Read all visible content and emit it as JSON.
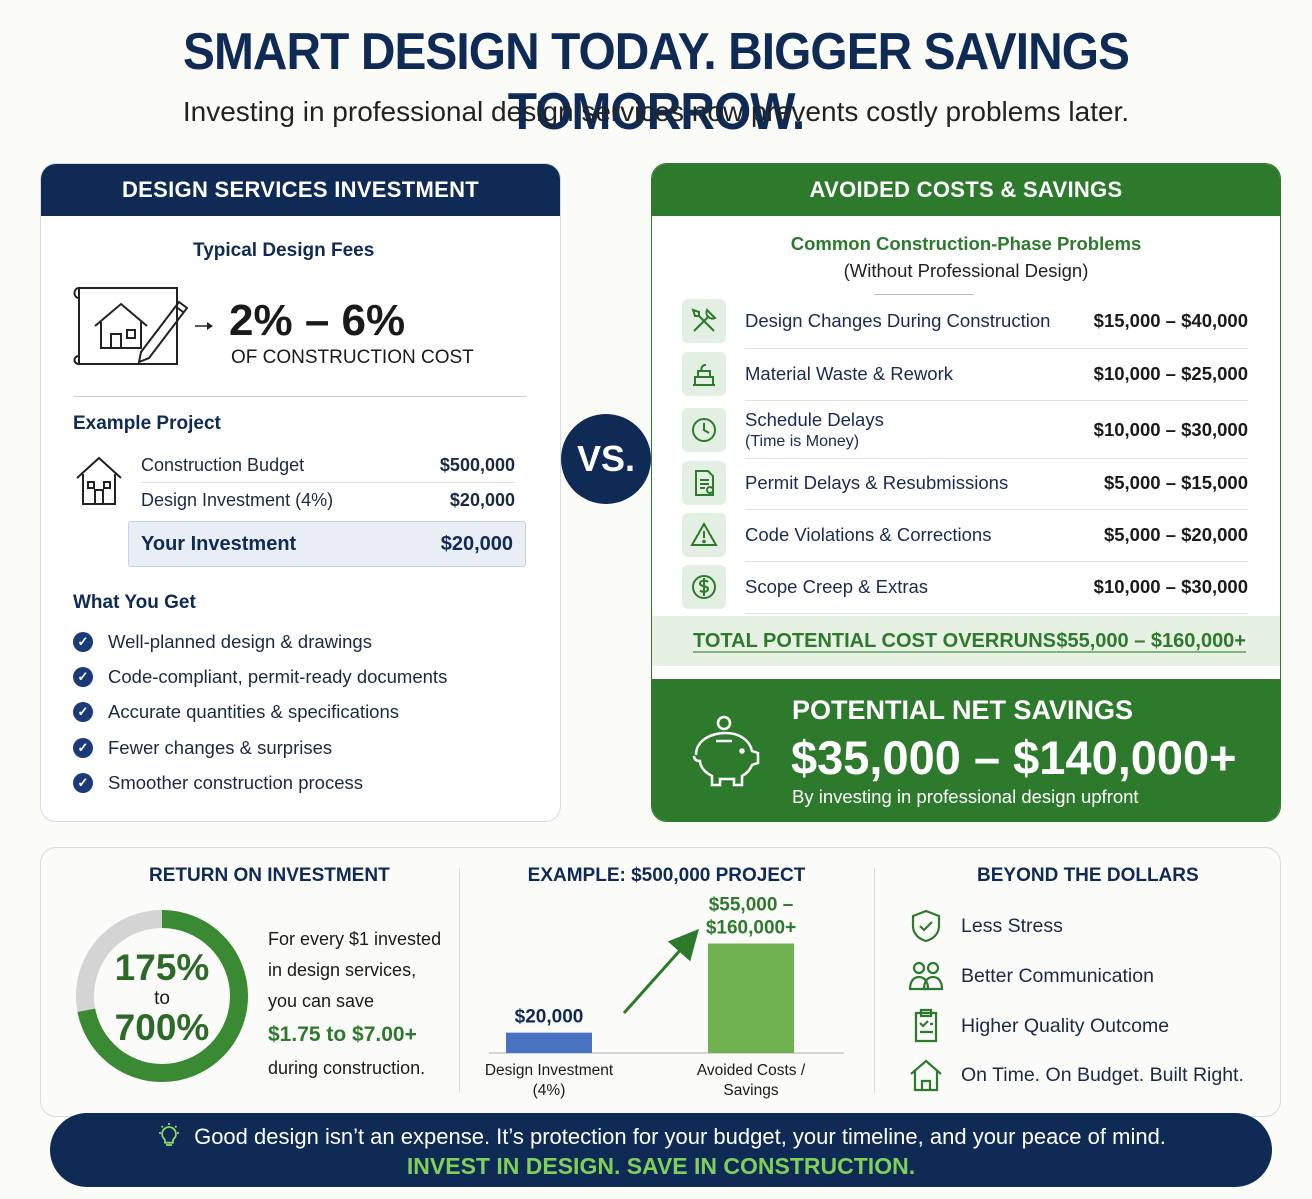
{
  "header": {
    "title": "SMART DESIGN TODAY. BIGGER SAVINGS TOMORROW.",
    "subtitle": "Investing in professional design services now prevents costly problems later."
  },
  "left_panel": {
    "heading": "DESIGN SERVICES INVESTMENT",
    "fees_title": "Typical Design Fees",
    "fees_range": "2% – 6%",
    "fees_caption": "OF CONSTRUCTION COST",
    "example_title": "Example Project",
    "budget_rows": [
      {
        "label": "Construction Budget",
        "value": "$500,000"
      },
      {
        "label": "Design Investment (4%)",
        "value": "$20,000"
      }
    ],
    "your_investment": {
      "label": "Your Investment",
      "value": "$20,000"
    },
    "what_you_get_title": "What You Get",
    "what_you_get": [
      "Well-planned design & drawings",
      "Code-compliant, permit-ready documents",
      "Accurate quantities & specifications",
      "Fewer changes & surprises",
      "Smoother construction process"
    ]
  },
  "vs_label": "VS.",
  "right_panel": {
    "heading": "AVOIDED COSTS & SAVINGS",
    "problems_title": "Common Construction-Phase Problems",
    "problems_subtitle": "(Without Professional Design)",
    "problems": [
      {
        "icon": "tools-icon",
        "label": "Design Changes During Construction",
        "sub": "",
        "value": "$15,000 – $40,000"
      },
      {
        "icon": "material-icon",
        "label": "Material Waste & Rework",
        "sub": "",
        "value": "$10,000 – $25,000"
      },
      {
        "icon": "clock-icon",
        "label": "Schedule Delays",
        "sub": "(Time is Money)",
        "value": "$10,000 – $30,000"
      },
      {
        "icon": "document-icon",
        "label": "Permit Delays & Resubmissions",
        "sub": "",
        "value": "$5,000 – $15,000"
      },
      {
        "icon": "warning-icon",
        "label": "Code Violations & Corrections",
        "sub": "",
        "value": "$5,000 – $20,000"
      },
      {
        "icon": "dollar-icon",
        "label": "Scope Creep & Extras",
        "sub": "",
        "value": "$10,000 – $30,000"
      }
    ],
    "total_label": "TOTAL POTENTIAL COST OVERRUNS",
    "total_value": "$55,000 – $160,000+",
    "savings_title": "POTENTIAL NET SAVINGS",
    "savings_value": "$35,000 – $140,000+",
    "savings_caption": "By investing in professional design upfront"
  },
  "roi": {
    "title": "RETURN ON INVESTMENT",
    "low": "175%",
    "to": "to",
    "high": "700%",
    "ring_fraction": 0.72,
    "line1": "For every $1 invested",
    "line2": "in design services,",
    "line3": "you can save",
    "amount": "$1.75 to $7.00+",
    "line4": "during construction."
  },
  "example": {
    "title": "EXAMPLE: $500,000 PROJECT"
  },
  "chart_data": {
    "type": "bar",
    "title": "EXAMPLE: $500,000 PROJECT",
    "categories": [
      "Design Investment (4%)",
      "Avoided Costs / Savings"
    ],
    "values": [
      20000,
      107500
    ],
    "data_labels": [
      "$20,000",
      "$55,000 – $160,000+"
    ],
    "colors": [
      "#4a72c2",
      "#6fb24f"
    ],
    "xlabel": "",
    "ylabel": "",
    "ylim": [
      0,
      110000
    ],
    "grid": false
  },
  "beyond": {
    "title": "BEYOND THE DOLLARS",
    "items": [
      {
        "icon": "shield-check-icon",
        "label": "Less Stress"
      },
      {
        "icon": "people-icon",
        "label": "Better Communication"
      },
      {
        "icon": "clipboard-icon",
        "label": "Higher Quality Outcome"
      },
      {
        "icon": "house-icon",
        "label": "On Time. On Budget. Built Right."
      }
    ]
  },
  "banner": {
    "line1": "Good design isn’t an expense. It’s protection for your budget, your timeline, and your peace of mind.",
    "line2": "INVEST IN DESIGN. SAVE IN CONSTRUCTION."
  },
  "colors": {
    "navy": "#0f2a55",
    "green": "#2d7a2d",
    "light_green": "#6fb24f",
    "blue_bar": "#4a72c2"
  }
}
